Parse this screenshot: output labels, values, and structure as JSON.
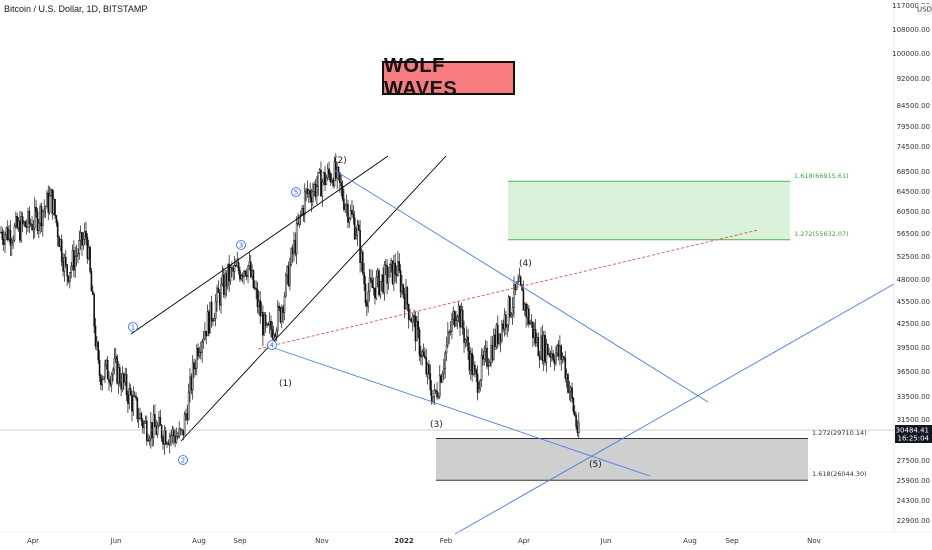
{
  "header": {
    "symbol": "Bitcoin / U.S. Dollar, 1D, BITSTAMP",
    "banner": "WOLF WAVES",
    "currency": "USD"
  },
  "colors": {
    "candle": "#111111",
    "channel": "#000000",
    "wolf_lines": "#4a7fe0",
    "target_line": "#e05060",
    "target_box_fill": "#d9f2d9",
    "target_box_stroke": "#4caf50",
    "support_box_fill": "#cfcfcf",
    "banner_bg": "#f77c80"
  },
  "chart_data": {
    "type": "candlestick",
    "title": "Bitcoin / U.S. Dollar, 1D, BITSTAMP",
    "y_scale": "log",
    "ylim": [
      21500,
      117000
    ],
    "y_ticks": [
      "117000.00",
      "108000.00",
      "100000.00",
      "92000.00",
      "84500.00",
      "79500.00",
      "74500.00",
      "68500.00",
      "64500.00",
      "60500.00",
      "56500.00",
      "52500.00",
      "48000.00",
      "45500.00",
      "42500.00",
      "39500.00",
      "36500.00",
      "33500.00",
      "31500.00",
      "27500.00",
      "25900.00",
      "24300.00",
      "22900.00"
    ],
    "x_labels": [
      "Apr",
      "Jun",
      "Aug",
      "Sep",
      "Nov",
      "2022",
      "Feb",
      "Apr",
      "Jun",
      "Aug",
      "Sep",
      "Nov"
    ],
    "last_price": "30484.41",
    "countdown": "16:25:04",
    "price_path": [
      [
        "2021-03-15",
        57000
      ],
      [
        "2021-04-01",
        59000
      ],
      [
        "2021-04-14",
        63500
      ],
      [
        "2021-04-25",
        50000
      ],
      [
        "2021-05-10",
        56500
      ],
      [
        "2021-05-19",
        36500
      ],
      [
        "2021-06-01",
        37000
      ],
      [
        "2021-06-22",
        31000
      ],
      [
        "2021-07-20",
        29800
      ],
      [
        "2021-08-01",
        40000
      ],
      [
        "2021-08-23",
        49500
      ],
      [
        "2021-09-07",
        51500
      ],
      [
        "2021-09-21",
        41000
      ],
      [
        "2021-10-01",
        44000
      ],
      [
        "2021-10-20",
        64000
      ],
      [
        "2021-11-10",
        69000
      ],
      [
        "2021-11-28",
        57000
      ],
      [
        "2021-12-04",
        47000
      ],
      [
        "2021-12-27",
        50800
      ],
      [
        "2022-01-10",
        42000
      ],
      [
        "2022-01-24",
        33500
      ],
      [
        "2022-02-10",
        45500
      ],
      [
        "2022-02-24",
        35500
      ],
      [
        "2022-03-28",
        47800
      ],
      [
        "2022-04-11",
        40000
      ],
      [
        "2022-04-30",
        38500
      ],
      [
        "2022-05-12",
        29800
      ],
      [
        "2022-05-14",
        30484
      ]
    ],
    "fib_levels": [
      {
        "label": "1.618(66915.61)",
        "value": 66915.61,
        "color": "#43a047"
      },
      {
        "label": "1.272(55632.07)",
        "value": 55632.07,
        "color": "#43a047"
      },
      {
        "label": "1.272(29710.14)",
        "value": 29710.14,
        "color": "#333333"
      },
      {
        "label": "1.618(26044.30)",
        "value": 26044.3,
        "color": "#333333"
      }
    ],
    "wave_labels": [
      "(1)",
      "(2)",
      "(3)",
      "(4)",
      "(5)"
    ],
    "circle_labels": [
      "1",
      "2",
      "3",
      "4",
      "5"
    ]
  }
}
